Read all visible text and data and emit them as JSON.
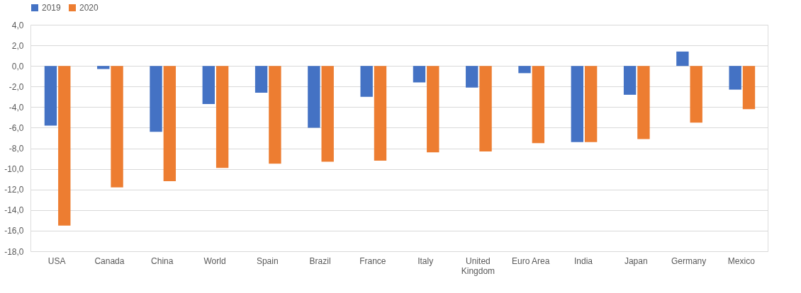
{
  "chart_data": {
    "type": "bar",
    "categories": [
      "USA",
      "Canada",
      "China",
      "World",
      "Spain",
      "Brazil",
      "France",
      "Italy",
      "United Kingdom",
      "Euro Area",
      "India",
      "Japan",
      "Germany",
      "Mexico"
    ],
    "series": [
      {
        "name": "2019",
        "color": "#4472c4",
        "values": [
          -5.8,
          -0.3,
          -6.4,
          -3.7,
          -2.6,
          -6.0,
          -3.0,
          -1.6,
          -2.1,
          -0.7,
          -7.4,
          -2.8,
          1.4,
          -2.3
        ]
      },
      {
        "name": "2020",
        "color": "#ed7d31",
        "values": [
          -15.5,
          -11.8,
          -11.2,
          -9.9,
          -9.5,
          -9.3,
          -9.2,
          -8.4,
          -8.3,
          -7.5,
          -7.4,
          -7.1,
          -5.5,
          -4.2
        ]
      }
    ],
    "ylim": [
      -18,
      4
    ],
    "yticks": [
      {
        "value": -18,
        "label": "-18,0"
      },
      {
        "value": -16,
        "label": "-16,0"
      },
      {
        "value": -14,
        "label": "-14,0"
      },
      {
        "value": -12,
        "label": "-12,0"
      },
      {
        "value": -10,
        "label": "-10,0"
      },
      {
        "value": -8,
        "label": "-8,0"
      },
      {
        "value": -6,
        "label": "-6,0"
      },
      {
        "value": -4,
        "label": "-4,0"
      },
      {
        "value": -2,
        "label": "-2,0"
      },
      {
        "value": 0,
        "label": "0,0"
      },
      {
        "value": 2,
        "label": "2,0"
      },
      {
        "value": 4,
        "label": "4,0"
      }
    ],
    "grid": "y",
    "legend": "top"
  }
}
